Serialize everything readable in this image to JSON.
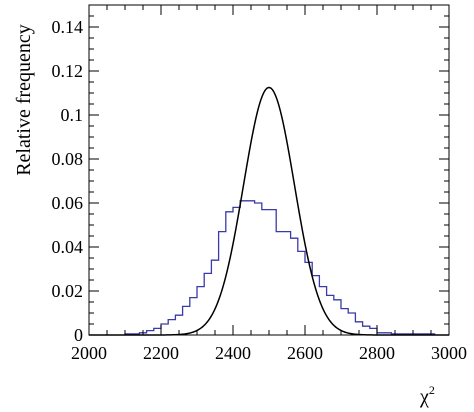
{
  "chart_data": {
    "type": "line",
    "xlabel": "χ",
    "xlabel_sup": "2",
    "ylabel": "Relative frequency",
    "xlim": [
      2000,
      3000
    ],
    "ylim": [
      0,
      0.15
    ],
    "x_ticks": [
      2000,
      2200,
      2400,
      2600,
      2800,
      3000
    ],
    "x_tick_labels": [
      "2000",
      "2200",
      "2400",
      "2600",
      "2800",
      "3000"
    ],
    "y_ticks": [
      0,
      0.02,
      0.04,
      0.06,
      0.08,
      0.1,
      0.12,
      0.14
    ],
    "y_tick_labels": [
      "0",
      "0.02",
      "0.04",
      "0.06",
      "0.08",
      "0.1",
      "0.12",
      "0.14"
    ],
    "grid": false,
    "series": [
      {
        "kind": "histogram",
        "color": "#3a3aa8",
        "bin_width": 20,
        "bin_edges_start": 2100,
        "values": [
          0.0005,
          0.0005,
          0.001,
          0.002,
          0.003,
          0.005,
          0.007,
          0.009,
          0.013,
          0.017,
          0.022,
          0.028,
          0.034,
          0.047,
          0.056,
          0.058,
          0.061,
          0.061,
          0.06,
          0.057,
          0.057,
          0.047,
          0.047,
          0.044,
          0.038,
          0.033,
          0.027,
          0.022,
          0.018,
          0.016,
          0.012,
          0.01,
          0.006,
          0.004,
          0.003,
          0.001,
          0.001,
          0.0005,
          0.0005,
          0.0005,
          0.0005,
          0.0005,
          0.0005
        ]
      },
      {
        "kind": "curve",
        "color": "#000000",
        "distribution": "normal",
        "mean": 2500,
        "sd": 70.7,
        "peak": 0.1125
      }
    ]
  }
}
